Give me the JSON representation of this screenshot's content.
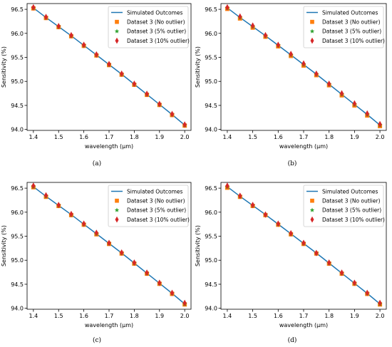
{
  "chart_data": [
    {
      "type": "line",
      "caption": "(a)",
      "xlabel": "wavelength (µm)",
      "ylabel": "Sensitivity (%)",
      "xlim": [
        1.375,
        2.025
      ],
      "ylim": [
        93.98,
        96.62
      ],
      "xticks": [
        "1.4",
        "1.5",
        "1.6",
        "1.7",
        "1.8",
        "1.9",
        "2.0"
      ],
      "yticks": [
        "94.0",
        "94.5",
        "95.0",
        "95.5",
        "96.0",
        "96.5"
      ],
      "legend_position": "top-right",
      "x": [
        1.4,
        1.45,
        1.5,
        1.55,
        1.6,
        1.65,
        1.7,
        1.75,
        1.8,
        1.85,
        1.9,
        1.95,
        2.0
      ],
      "series": [
        {
          "name": "Simulated Outcomes",
          "kind": "line",
          "color": "#1f77b4",
          "values": [
            96.53,
            96.33,
            96.14,
            95.95,
            95.75,
            95.55,
            95.35,
            95.15,
            94.94,
            94.73,
            94.52,
            94.31,
            94.09
          ]
        },
        {
          "name": "Dataset 3 (No outlier)",
          "kind": "square",
          "color": "#ff7f0e",
          "values": [
            96.52,
            96.32,
            96.13,
            95.94,
            95.74,
            95.54,
            95.34,
            95.14,
            94.93,
            94.72,
            94.51,
            94.3,
            94.08
          ]
        },
        {
          "name": "Dataset 3 (5% outlier)",
          "kind": "star",
          "color": "#2ca02c",
          "values": [
            96.53,
            96.33,
            96.14,
            95.95,
            95.75,
            95.55,
            95.35,
            95.15,
            94.94,
            94.73,
            94.52,
            94.31,
            94.09
          ]
        },
        {
          "name": "Dataset 3 (10% outlier)",
          "kind": "diamond",
          "color": "#d62728",
          "values": [
            96.54,
            96.34,
            96.15,
            95.96,
            95.76,
            95.56,
            95.36,
            95.16,
            94.95,
            94.74,
            94.53,
            94.32,
            94.1
          ]
        }
      ]
    },
    {
      "type": "line",
      "caption": "(b)",
      "xlabel": "wavelength (µm)",
      "ylabel": "Sensitivity (%)",
      "xlim": [
        1.375,
        2.025
      ],
      "ylim": [
        93.98,
        96.62
      ],
      "xticks": [
        "1.4",
        "1.5",
        "1.6",
        "1.7",
        "1.8",
        "1.9",
        "2.0"
      ],
      "yticks": [
        "94.0",
        "94.5",
        "95.0",
        "95.5",
        "96.0",
        "96.5"
      ],
      "legend_position": "top-right",
      "x": [
        1.4,
        1.45,
        1.5,
        1.55,
        1.6,
        1.65,
        1.7,
        1.75,
        1.8,
        1.85,
        1.9,
        1.95,
        2.0
      ],
      "series": [
        {
          "name": "Simulated Outcomes",
          "kind": "line",
          "color": "#1f77b4",
          "values": [
            96.53,
            96.33,
            96.14,
            95.95,
            95.75,
            95.55,
            95.35,
            95.15,
            94.94,
            94.73,
            94.52,
            94.31,
            94.09
          ]
        },
        {
          "name": "Dataset 3 (No outlier)",
          "kind": "square",
          "color": "#ff7f0e",
          "values": [
            96.51,
            96.31,
            96.12,
            95.93,
            95.73,
            95.53,
            95.33,
            95.13,
            94.92,
            94.71,
            94.5,
            94.29,
            94.07
          ]
        },
        {
          "name": "Dataset 3 (5% outlier)",
          "kind": "star",
          "color": "#2ca02c",
          "values": [
            96.53,
            96.33,
            96.14,
            95.95,
            95.75,
            95.55,
            95.35,
            95.15,
            94.94,
            94.73,
            94.52,
            94.31,
            94.09
          ]
        },
        {
          "name": "Dataset 3 (10% outlier)",
          "kind": "diamond",
          "color": "#d62728",
          "values": [
            96.54,
            96.35,
            96.16,
            95.96,
            95.76,
            95.57,
            95.37,
            95.16,
            94.95,
            94.75,
            94.54,
            94.33,
            94.11
          ]
        }
      ]
    },
    {
      "type": "line",
      "caption": "(c)",
      "xlabel": "wavelength (µm)",
      "ylabel": "Sensitivity (%)",
      "xlim": [
        1.375,
        2.025
      ],
      "ylim": [
        93.98,
        96.62
      ],
      "xticks": [
        "1.4",
        "1.5",
        "1.6",
        "1.7",
        "1.8",
        "1.9",
        "2.0"
      ],
      "yticks": [
        "94.0",
        "94.5",
        "95.0",
        "95.5",
        "96.0",
        "96.5"
      ],
      "legend_position": "top-right",
      "x": [
        1.4,
        1.45,
        1.5,
        1.55,
        1.6,
        1.65,
        1.7,
        1.75,
        1.8,
        1.85,
        1.9,
        1.95,
        2.0
      ],
      "series": [
        {
          "name": "Simulated Outcomes",
          "kind": "line",
          "color": "#1f77b4",
          "values": [
            96.53,
            96.33,
            96.14,
            95.95,
            95.75,
            95.55,
            95.35,
            95.15,
            94.94,
            94.73,
            94.52,
            94.31,
            94.09
          ]
        },
        {
          "name": "Dataset 3 (No outlier)",
          "kind": "square",
          "color": "#ff7f0e",
          "values": [
            96.52,
            96.32,
            96.13,
            95.94,
            95.74,
            95.54,
            95.34,
            95.14,
            94.93,
            94.72,
            94.51,
            94.3,
            94.08
          ]
        },
        {
          "name": "Dataset 3 (5% outlier)",
          "kind": "star",
          "color": "#2ca02c",
          "values": [
            96.53,
            96.33,
            96.14,
            95.95,
            95.75,
            95.55,
            95.35,
            95.15,
            94.94,
            94.73,
            94.52,
            94.31,
            94.09
          ]
        },
        {
          "name": "Dataset 3 (10% outlier)",
          "kind": "diamond",
          "color": "#d62728",
          "values": [
            96.55,
            96.35,
            96.15,
            95.96,
            95.76,
            95.57,
            95.36,
            95.16,
            94.95,
            94.74,
            94.53,
            94.32,
            94.11
          ]
        }
      ]
    },
    {
      "type": "line",
      "caption": "(d)",
      "xlabel": "wavelength (µm)",
      "ylabel": "Sensitivity (%)",
      "xlim": [
        1.375,
        2.025
      ],
      "ylim": [
        93.98,
        96.62
      ],
      "xticks": [
        "1.4",
        "1.5",
        "1.6",
        "1.7",
        "1.8",
        "1.9",
        "2.0"
      ],
      "yticks": [
        "94.0",
        "94.5",
        "95.0",
        "95.5",
        "96.0",
        "96.5"
      ],
      "legend_position": "top-right",
      "x": [
        1.4,
        1.45,
        1.5,
        1.55,
        1.6,
        1.65,
        1.7,
        1.75,
        1.8,
        1.85,
        1.9,
        1.95,
        2.0
      ],
      "series": [
        {
          "name": "Simulated Outcomes",
          "kind": "line",
          "color": "#1f77b4",
          "values": [
            96.53,
            96.33,
            96.14,
            95.95,
            95.75,
            95.55,
            95.35,
            95.15,
            94.94,
            94.73,
            94.52,
            94.31,
            94.09
          ]
        },
        {
          "name": "Dataset 3 (No outlier)",
          "kind": "square",
          "color": "#ff7f0e",
          "values": [
            96.51,
            96.32,
            96.13,
            95.94,
            95.74,
            95.54,
            95.34,
            95.14,
            94.93,
            94.72,
            94.51,
            94.3,
            94.08
          ]
        },
        {
          "name": "Dataset 3 (5% outlier)",
          "kind": "star",
          "color": "#2ca02c",
          "values": [
            96.53,
            96.33,
            96.14,
            95.95,
            95.75,
            95.55,
            95.35,
            95.15,
            94.94,
            94.73,
            94.52,
            94.31,
            94.09
          ]
        },
        {
          "name": "Dataset 3 (10% outlier)",
          "kind": "diamond",
          "color": "#d62728",
          "values": [
            96.55,
            96.34,
            96.15,
            95.95,
            95.76,
            95.56,
            95.36,
            95.15,
            94.95,
            94.74,
            94.53,
            94.32,
            94.11
          ]
        }
      ]
    }
  ]
}
